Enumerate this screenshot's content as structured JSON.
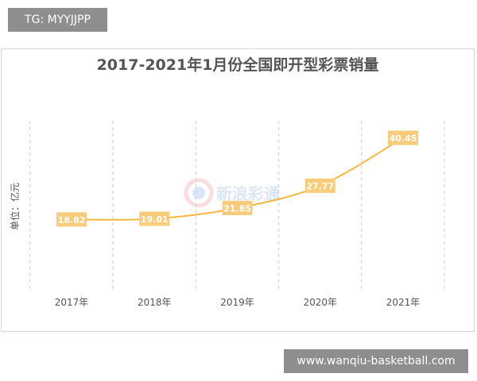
{
  "overlay": {
    "tg_label": "TG: MYYJJPP",
    "site_label": "www.wanqiu-basketball.com"
  },
  "watermark": "新浪彩通",
  "colors": {
    "line": "#f5b83d",
    "label_bg": "#f8cc7a",
    "label_text": "#ffffff",
    "grid": "#cccccc",
    "title": "#555555"
  },
  "chart_data": {
    "type": "line",
    "title": "2017-2021年1月份全国即开型彩票销量",
    "ylabel": "单位：亿元",
    "xlabel": "",
    "categories": [
      "2017年",
      "2018年",
      "2019年",
      "2020年",
      "2021年"
    ],
    "values": [
      18.82,
      19.01,
      21.85,
      27.77,
      40.45
    ],
    "data_labels": [
      "18.82",
      "19.01",
      "21.85",
      "27.77",
      "40.45"
    ],
    "ylim": [
      0,
      45
    ],
    "smooth": true,
    "grid": "vertical dashed",
    "legend": "none"
  }
}
